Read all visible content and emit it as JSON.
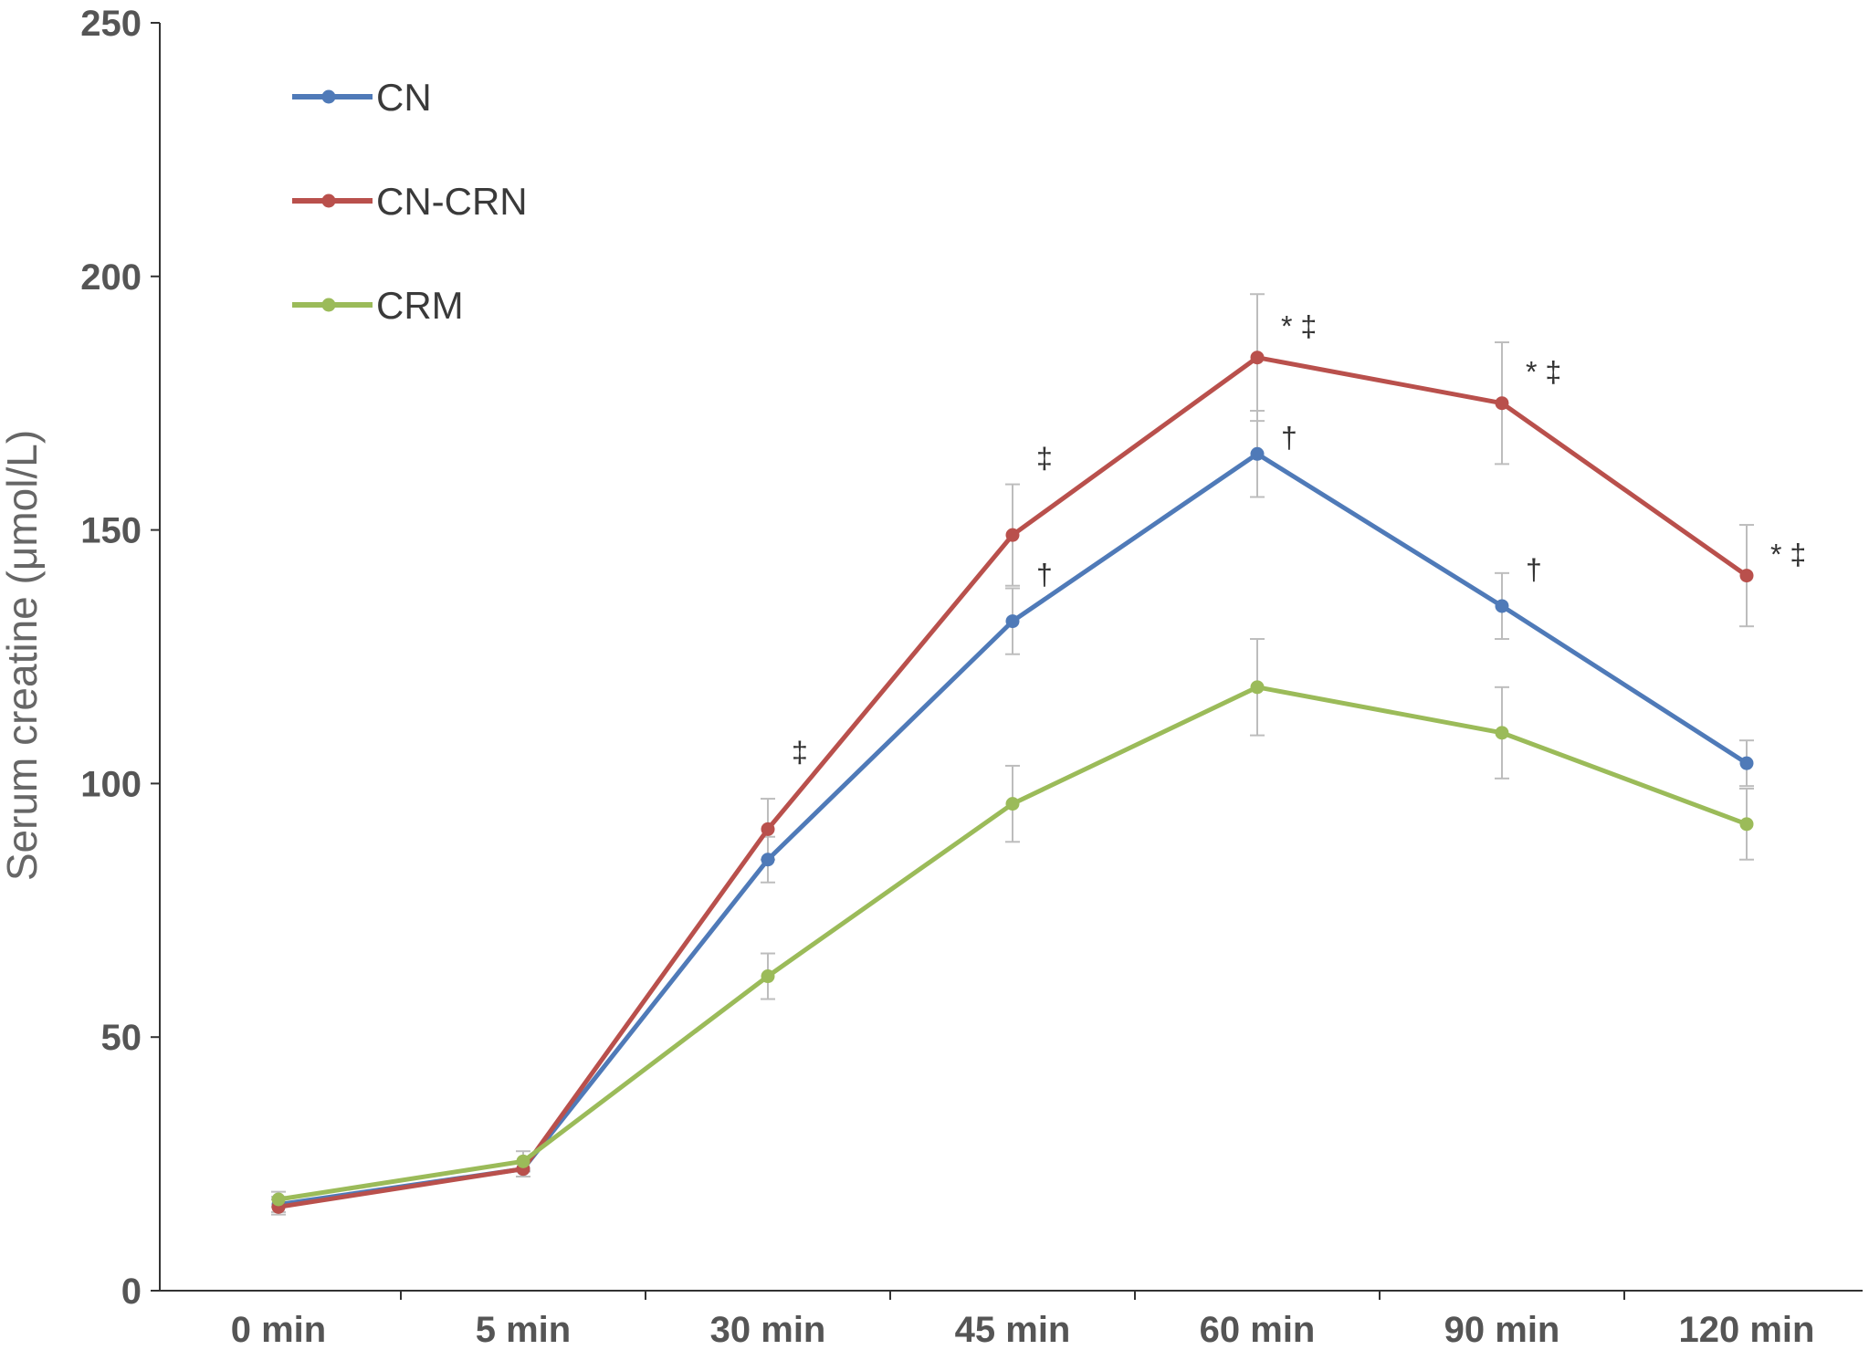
{
  "chart_data": {
    "type": "line",
    "title": "",
    "xlabel": "",
    "ylabel": "Serum creatine (μmol/L)",
    "categories": [
      "0 min",
      "5 min",
      "30 min",
      "45 min",
      "60 min",
      "90 min",
      "120 min"
    ],
    "ylim": [
      0,
      250
    ],
    "yticks": [
      0,
      50,
      100,
      150,
      200,
      250
    ],
    "grid": false,
    "legend_position": "top-left",
    "series": [
      {
        "name": "CN",
        "color": "#4f7ab8",
        "values": [
          17,
          24,
          85,
          132,
          165,
          135,
          104
        ],
        "errors": [
          1.5,
          1.5,
          4.5,
          6.5,
          8.5,
          6.5,
          4.5
        ]
      },
      {
        "name": "CN-CRN",
        "color": "#b9504c",
        "values": [
          16.5,
          24,
          91,
          149,
          184,
          175,
          141
        ],
        "errors": [
          1.5,
          1.5,
          6,
          10,
          12.5,
          12,
          10
        ]
      },
      {
        "name": "CRM",
        "color": "#9bbb59",
        "values": [
          18,
          25.5,
          62,
          96,
          119,
          110,
          92
        ],
        "errors": [
          1.5,
          2,
          4.5,
          7.5,
          9.5,
          9,
          7
        ]
      }
    ],
    "annotations": [
      {
        "category": "30 min",
        "y": 106,
        "text": "‡"
      },
      {
        "category": "45 min",
        "y": 164,
        "text": "‡"
      },
      {
        "category": "45 min",
        "y": 141,
        "text": "†"
      },
      {
        "category": "60 min",
        "y": 190,
        "text": "* ‡"
      },
      {
        "category": "60 min",
        "y": 168,
        "text": "†"
      },
      {
        "category": "90 min",
        "y": 181,
        "text": "* ‡"
      },
      {
        "category": "90 min",
        "y": 142,
        "text": "†"
      },
      {
        "category": "120 min",
        "y": 145,
        "text": "* ‡"
      }
    ]
  }
}
